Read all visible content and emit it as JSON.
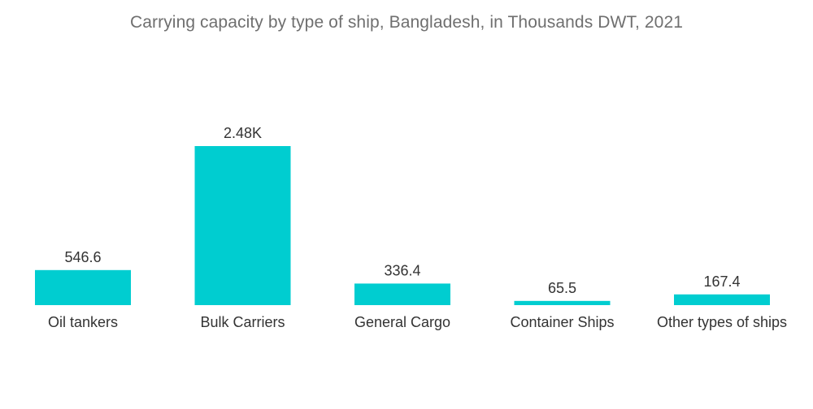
{
  "chart_data": {
    "type": "bar",
    "title": "Carrying capacity by type of ship, Bangladesh, in Thousands DWT, 2021",
    "categories": [
      "Oil tankers",
      "Bulk Carriers",
      "General Cargo",
      "Container Ships",
      "Other types of ships"
    ],
    "values": [
      546.6,
      2480,
      336.4,
      65.5,
      167.4
    ],
    "value_labels": [
      "546.6",
      "2.48K",
      "336.4",
      "65.5",
      "167.4"
    ],
    "xlabel": "",
    "ylabel": "",
    "ylim": [
      0,
      2480
    ],
    "grid": false,
    "legend": "none",
    "colors": {
      "bar": "#00cdd0",
      "title": "#6f6f6f",
      "text": "#333333"
    }
  }
}
